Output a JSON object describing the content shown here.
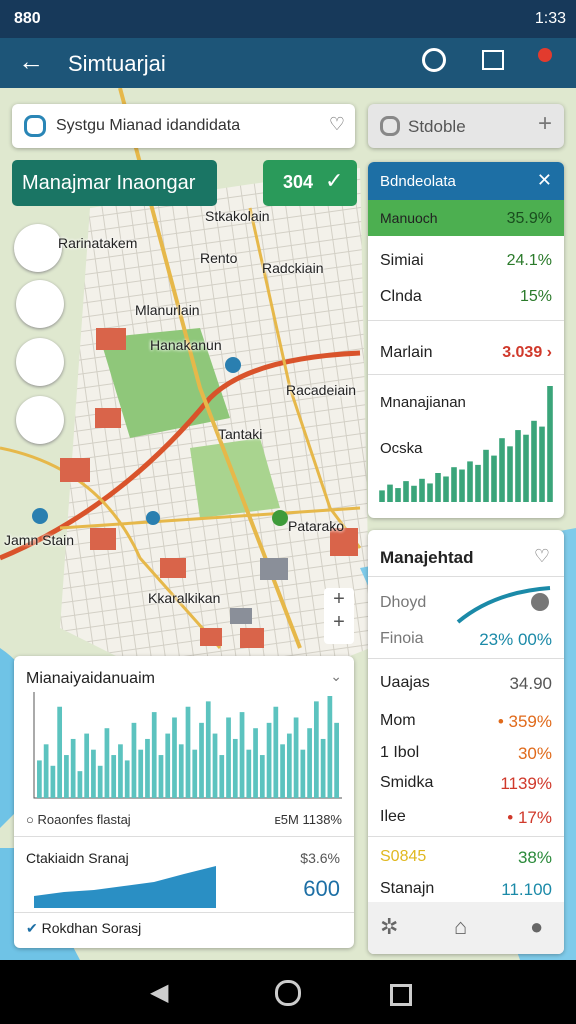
{
  "status_bar": {
    "left": "880",
    "time": "1:33"
  },
  "app_bar": {
    "title": "Simtuarjai"
  },
  "search": {
    "placeholder": "Systgu Mianad idandidata",
    "secondary": "Stdoble"
  },
  "action_button": {
    "label": "Manajmar Inaongar",
    "badge": "304"
  },
  "map": {
    "labels": [
      "Stkakolain",
      "Rarinatakem",
      "Radckiain",
      "Rento",
      "Mlanurlain",
      "Hanakanun",
      "Racadeiain",
      "Tantaki",
      "Jamn Stain",
      "Patarako",
      "Kkaralkikan"
    ]
  },
  "summary_card": {
    "title": "Bdndeolata",
    "rows": [
      {
        "label": "Manuoch",
        "value": "35.9%"
      },
      {
        "label": "Simiai",
        "value": "24.1%"
      },
      {
        "label": "Clnda",
        "value": "15%"
      },
      {
        "label": "Marlain",
        "value": "3.039 ›"
      }
    ],
    "chart_labels": [
      "Mnanajianan",
      "Ocska"
    ],
    "chart_values": [
      10,
      15,
      12,
      18,
      14,
      20,
      16,
      25,
      22,
      30,
      28,
      35,
      32,
      45,
      40,
      55,
      48,
      62,
      58,
      70,
      65,
      100
    ]
  },
  "detail_card": {
    "title": "Manajehtad",
    "rows": [
      {
        "label": "Dhoyd",
        "value": null
      },
      {
        "label": "Finoia",
        "value": "23% 00%"
      },
      {
        "label": "Uaajas",
        "value": "34.90"
      },
      {
        "label": "Mom",
        "value": "• 359%"
      },
      {
        "label": "1 Ibol",
        "value": "30%"
      },
      {
        "label": "Smidka",
        "value": "1139%"
      },
      {
        "label": "Ilee",
        "value": "• 17%"
      },
      {
        "label": "S0845",
        "value": "38%"
      },
      {
        "label": "Stanajn",
        "value": "11.100"
      }
    ]
  },
  "activity_card": {
    "title": "Mianaiyaidanuaim",
    "chart_values": [
      35,
      50,
      30,
      85,
      40,
      55,
      25,
      60,
      45,
      30,
      65,
      40,
      50,
      35,
      70,
      45,
      55,
      80,
      40,
      60,
      75,
      50,
      85,
      45,
      70,
      90,
      60,
      40,
      75,
      55,
      80,
      45,
      65,
      40,
      70,
      85,
      50,
      60,
      75,
      45,
      65,
      90,
      55,
      95,
      70
    ],
    "legend": "Roaonfes flastaj",
    "legend_value": "ᴇ5M 1138%",
    "sub_title": "Ctakiaidn Sranaj",
    "sub_value": "$3.6%",
    "sub_total": "600",
    "footer": "Rokdhan Sorasj"
  }
}
